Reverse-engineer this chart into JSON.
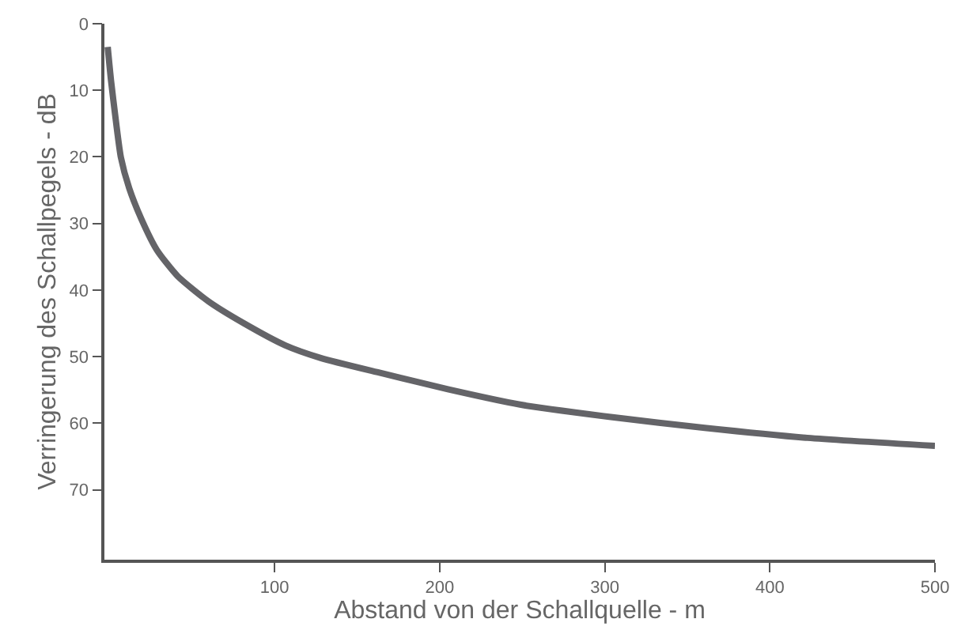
{
  "chart_data": {
    "type": "line",
    "xlabel": "Abstand von der Schallquelle - m",
    "ylabel": "Verringerung des Schallpegels - dB",
    "x": [
      -1,
      1,
      4,
      7,
      12,
      19.5,
      28.8,
      41.3,
      60,
      81.5,
      106.5,
      128,
      165,
      205,
      248.7,
      304.7,
      360.6,
      422.7,
      500
    ],
    "series": [
      {
        "color": "#646468",
        "values": [
          3.5,
          8.5,
          14.7,
          20.1,
          24.7,
          29.4,
          34,
          37.9,
          41.7,
          45,
          48.3,
          50.2,
          52.5,
          54.9,
          57.2,
          59.1,
          60.7,
          62.2,
          63.4
        ]
      }
    ],
    "xlim": [
      -3,
      500
    ],
    "xticks": [
      100,
      200,
      300,
      400,
      500
    ],
    "ylim": [
      80.5,
      0
    ],
    "yticks": [
      0,
      10,
      20,
      30,
      40,
      50,
      60,
      70
    ],
    "marker": "none",
    "line_style": "solid"
  }
}
